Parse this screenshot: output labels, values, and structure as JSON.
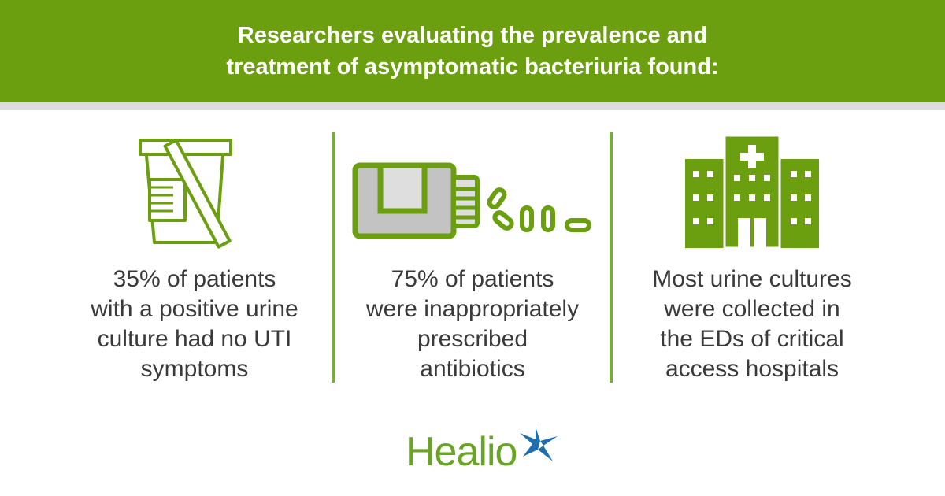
{
  "header": {
    "lines": [
      "Researchers evaluating the prevalence and",
      "treatment of asymptomatic bacteriuria found:"
    ]
  },
  "columns": [
    {
      "icon": "urine-cup-icon",
      "lines": [
        "35% of patients",
        "with a positive urine",
        "culture had no UTI",
        "symptoms"
      ]
    },
    {
      "icon": "pill-bottle-icon",
      "lines": [
        "75% of patients",
        "were inappropriately",
        "prescribed",
        "antibiotics"
      ]
    },
    {
      "icon": "hospital-icon",
      "lines": [
        "Most urine cultures",
        "were collected in",
        "the EDs of critical",
        "access hospitals"
      ]
    }
  ],
  "logo": {
    "text": "Healio"
  },
  "colors": {
    "brand_green": "#6b9f10",
    "divider": "#78ad3a",
    "logo_star_blue": "#1f6fb0"
  }
}
